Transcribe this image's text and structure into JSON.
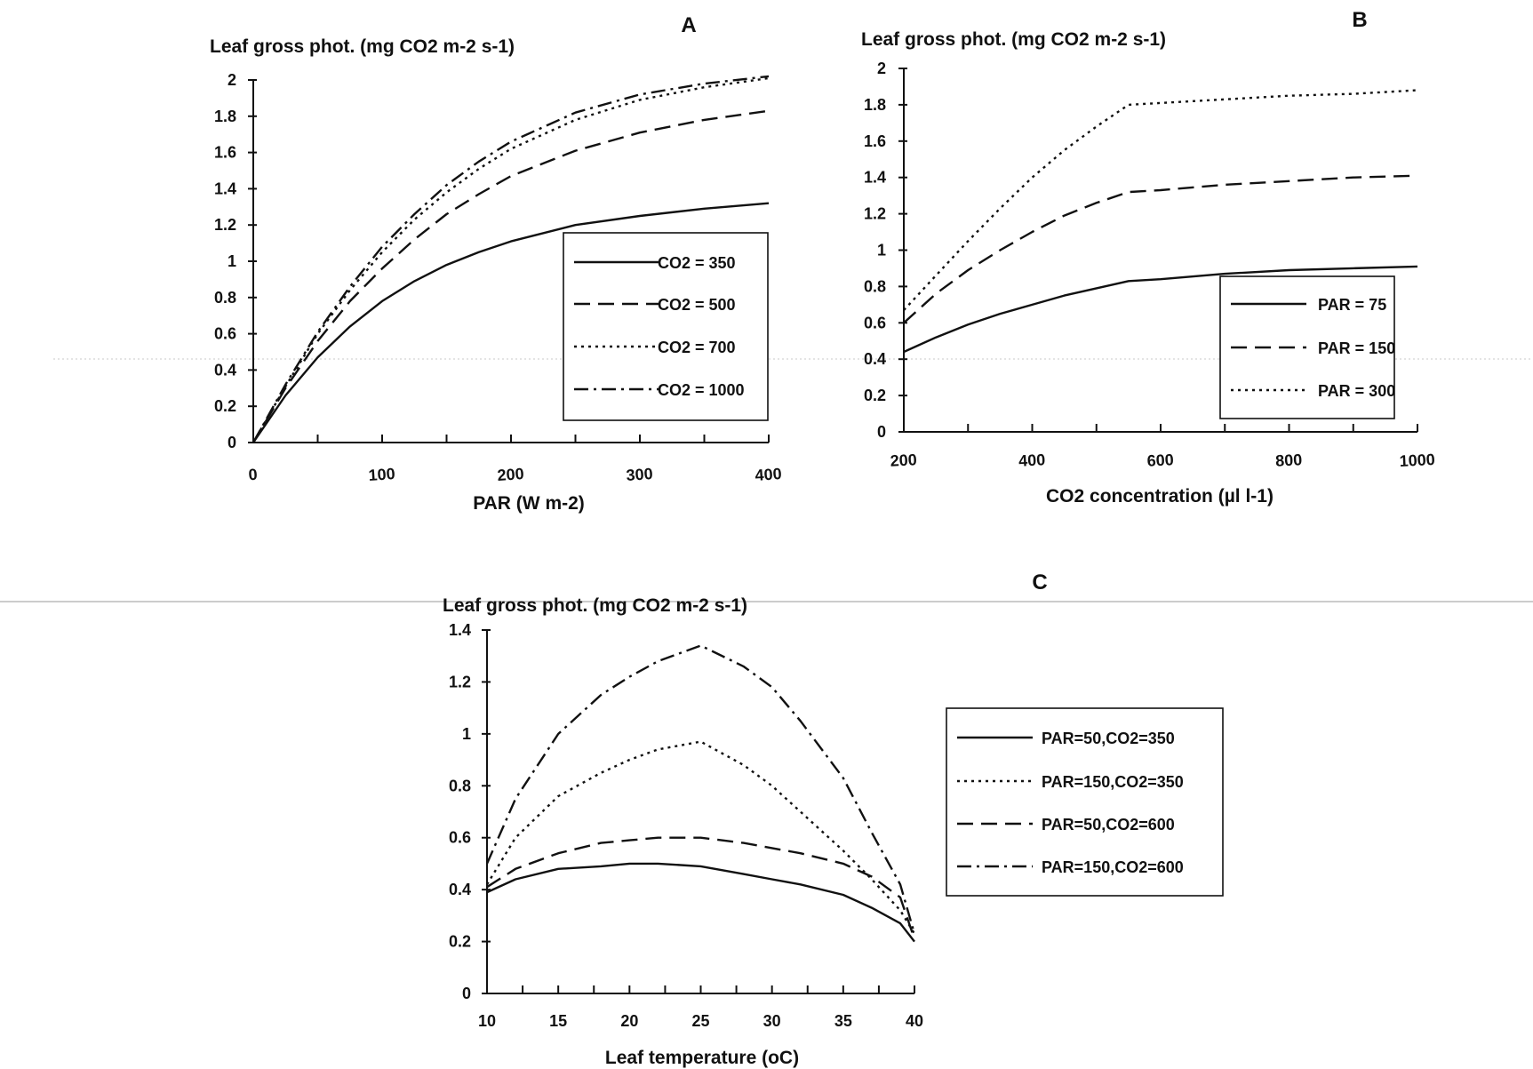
{
  "chart_data": [
    {
      "id": "A",
      "type": "line",
      "panel_label": "A",
      "title": "",
      "ylabel": "Leaf gross phot. (mg CO2 m-2 s-1)",
      "xlabel": "PAR (W m-2)",
      "xlim": [
        0,
        400
      ],
      "ylim": [
        0,
        2
      ],
      "xticks": [
        0,
        100,
        200,
        300,
        400
      ],
      "yticks": [
        0,
        0.2,
        0.4,
        0.6,
        0.8,
        1,
        1.2,
        1.4,
        1.6,
        1.8,
        2
      ],
      "grid": false,
      "legend_position": "bottom-right",
      "series": [
        {
          "name": "CO2 = 350",
          "style": "solid",
          "x": [
            0,
            25,
            50,
            75,
            100,
            125,
            150,
            175,
            200,
            250,
            300,
            350,
            400
          ],
          "y": [
            0,
            0.26,
            0.47,
            0.64,
            0.78,
            0.89,
            0.98,
            1.05,
            1.11,
            1.2,
            1.25,
            1.29,
            1.32
          ]
        },
        {
          "name": "CO2 = 500",
          "style": "dashed",
          "x": [
            0,
            25,
            50,
            75,
            100,
            125,
            150,
            175,
            200,
            250,
            300,
            350,
            400
          ],
          "y": [
            0,
            0.3,
            0.56,
            0.78,
            0.96,
            1.12,
            1.26,
            1.37,
            1.47,
            1.61,
            1.71,
            1.78,
            1.83
          ]
        },
        {
          "name": "CO2 = 700",
          "style": "dotted",
          "x": [
            0,
            25,
            50,
            75,
            100,
            125,
            150,
            175,
            200,
            250,
            300,
            350,
            400
          ],
          "y": [
            0,
            0.31,
            0.6,
            0.84,
            1.05,
            1.23,
            1.38,
            1.51,
            1.62,
            1.78,
            1.89,
            1.96,
            2.01
          ]
        },
        {
          "name": "CO2 = 1000",
          "style": "dashdot",
          "x": [
            0,
            25,
            50,
            75,
            100,
            125,
            150,
            175,
            200,
            250,
            300,
            350,
            400
          ],
          "y": [
            0,
            0.32,
            0.61,
            0.86,
            1.08,
            1.26,
            1.42,
            1.55,
            1.66,
            1.82,
            1.92,
            1.98,
            2.02
          ]
        }
      ]
    },
    {
      "id": "B",
      "type": "line",
      "panel_label": "B",
      "title": "",
      "ylabel": "Leaf gross phot. (mg CO2 m-2 s-1)",
      "xlabel": "CO2 concentration (µl l-1)",
      "xlim": [
        200,
        1000
      ],
      "ylim": [
        0,
        2
      ],
      "xticks": [
        200,
        400,
        600,
        800,
        1000
      ],
      "yticks": [
        0,
        0.2,
        0.4,
        0.6,
        0.8,
        1,
        1.2,
        1.4,
        1.6,
        1.8,
        2
      ],
      "grid": false,
      "legend_position": "bottom-right",
      "series": [
        {
          "name": "PAR = 75",
          "style": "solid",
          "x": [
            200,
            250,
            300,
            350,
            400,
            450,
            500,
            550,
            600,
            700,
            800,
            900,
            1000
          ],
          "y": [
            0.44,
            0.52,
            0.59,
            0.65,
            0.7,
            0.75,
            0.79,
            0.83,
            0.84,
            0.87,
            0.89,
            0.9,
            0.91
          ]
        },
        {
          "name": "PAR = 150",
          "style": "dashed",
          "x": [
            200,
            250,
            300,
            350,
            400,
            450,
            500,
            550,
            600,
            700,
            800,
            900,
            1000
          ],
          "y": [
            0.6,
            0.76,
            0.89,
            1.0,
            1.1,
            1.19,
            1.26,
            1.32,
            1.33,
            1.36,
            1.38,
            1.4,
            1.41
          ]
        },
        {
          "name": "PAR = 300",
          "style": "dotted",
          "x": [
            200,
            250,
            300,
            350,
            400,
            450,
            500,
            550,
            600,
            700,
            800,
            900,
            1000
          ],
          "y": [
            0.67,
            0.86,
            1.05,
            1.23,
            1.4,
            1.55,
            1.68,
            1.8,
            1.81,
            1.83,
            1.85,
            1.86,
            1.88
          ]
        }
      ]
    },
    {
      "id": "C",
      "type": "line",
      "panel_label": "C",
      "title": "",
      "ylabel": "Leaf gross phot. (mg CO2 m-2 s-1)",
      "xlabel": "Leaf temperature (oC)",
      "xlim": [
        10,
        40
      ],
      "ylim": [
        0,
        1.4
      ],
      "xticks": [
        10,
        15,
        20,
        25,
        30,
        35,
        40
      ],
      "yticks": [
        0,
        0.2,
        0.4,
        0.6,
        0.8,
        1,
        1.2,
        1.4
      ],
      "grid": false,
      "legend_position": "right",
      "series": [
        {
          "name": "PAR=50,CO2=350",
          "style": "solid",
          "x": [
            10,
            12,
            15,
            18,
            20,
            22,
            25,
            28,
            30,
            32,
            35,
            37,
            39,
            40
          ],
          "y": [
            0.39,
            0.44,
            0.48,
            0.49,
            0.5,
            0.5,
            0.49,
            0.46,
            0.44,
            0.42,
            0.38,
            0.33,
            0.27,
            0.2
          ]
        },
        {
          "name": "PAR=150,CO2=350",
          "style": "dotted",
          "x": [
            10,
            12,
            15,
            18,
            20,
            22,
            25,
            28,
            30,
            32,
            35,
            37,
            39,
            40
          ],
          "y": [
            0.42,
            0.6,
            0.76,
            0.85,
            0.9,
            0.94,
            0.97,
            0.88,
            0.8,
            0.7,
            0.55,
            0.44,
            0.32,
            0.23
          ]
        },
        {
          "name": "PAR=50,CO2=600",
          "style": "dashed",
          "x": [
            10,
            12,
            15,
            18,
            20,
            22,
            25,
            28,
            30,
            32,
            35,
            37,
            39,
            40
          ],
          "y": [
            0.41,
            0.48,
            0.54,
            0.58,
            0.59,
            0.6,
            0.6,
            0.58,
            0.56,
            0.54,
            0.5,
            0.45,
            0.37,
            0.21
          ]
        },
        {
          "name": "PAR=150,CO2=600",
          "style": "dashdot",
          "x": [
            10,
            12,
            15,
            18,
            20,
            22,
            25,
            28,
            30,
            32,
            35,
            37,
            39,
            40
          ],
          "y": [
            0.5,
            0.75,
            1.0,
            1.15,
            1.22,
            1.28,
            1.34,
            1.26,
            1.18,
            1.05,
            0.83,
            0.62,
            0.42,
            0.23
          ]
        }
      ]
    }
  ]
}
